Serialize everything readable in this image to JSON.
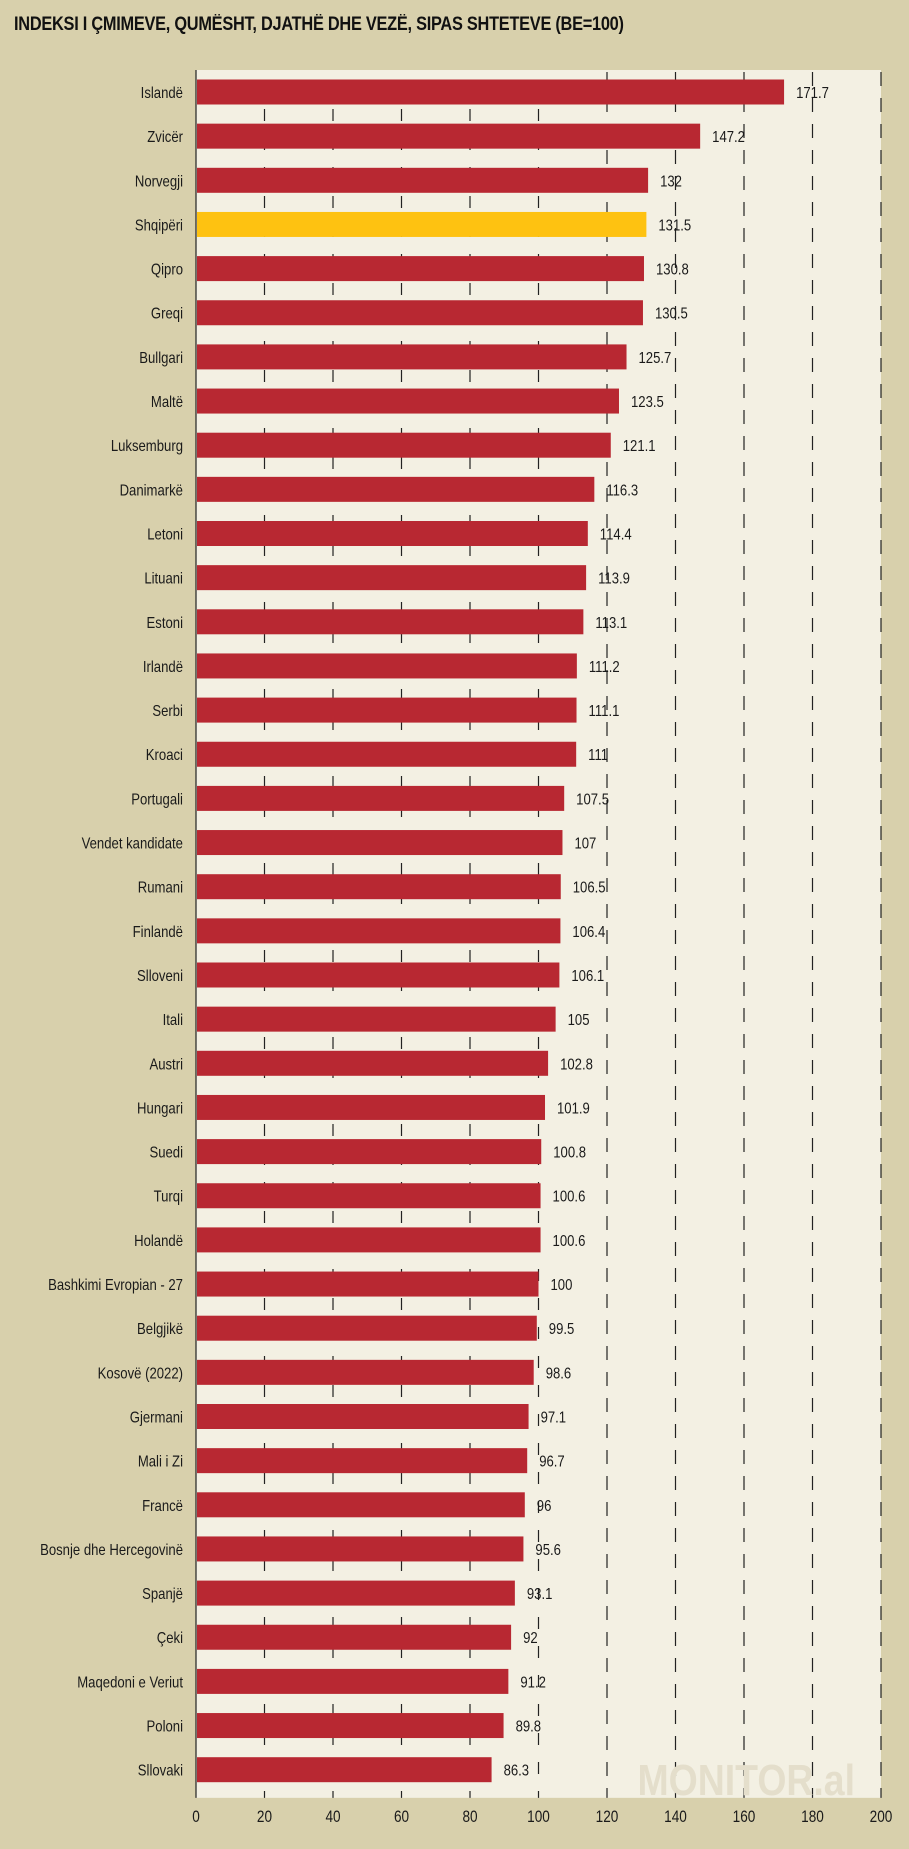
{
  "chart_data": {
    "type": "bar",
    "orientation": "horizontal",
    "title": "INDEKSI I ÇMIMEVE, QUMËSHT, DJATHË DHE VEZË, SIPAS SHTETEVE (BE=100)",
    "xlabel": "",
    "ylabel": "",
    "xlim": [
      0,
      200
    ],
    "xticks": [
      0,
      20,
      40,
      60,
      80,
      100,
      120,
      140,
      160,
      180,
      200
    ],
    "grid": true,
    "watermark": "MONITOR.al",
    "colors": {
      "default": "#B82832",
      "highlight": "#FEC211"
    },
    "highlight": "Shqipëri",
    "categories": [
      "Islandë",
      "Zvicër",
      "Norvegji",
      "Shqipëri",
      "Qipro",
      "Greqi",
      "Bullgari",
      "Maltë",
      "Luksemburg",
      "Danimarkë",
      "Letoni",
      "Lituani",
      "Estoni",
      "Irlandë",
      "Serbi",
      "Kroaci",
      "Portugali",
      "Vendet kandidate",
      "Rumani",
      "Finlandë",
      "Slloveni",
      "Itali",
      "Austri",
      "Hungari",
      "Suedi",
      "Turqi",
      "Holandë",
      "Bashkimi Evropian - 27",
      "Belgjikë",
      "Kosovë (2022)",
      "Gjermani",
      "Mali i Zi",
      "Francë",
      "Bosnje dhe Hercegovinë",
      "Spanjë",
      "Çeki",
      "Maqedoni e Veriut",
      "Poloni",
      "Sllovaki"
    ],
    "values": [
      171.7,
      147.2,
      132,
      131.5,
      130.8,
      130.5,
      125.7,
      123.5,
      121.1,
      116.3,
      114.4,
      113.9,
      113.1,
      111.2,
      111.1,
      111,
      107.5,
      107,
      106.5,
      106.4,
      106.1,
      105,
      102.8,
      101.9,
      100.8,
      100.6,
      100.6,
      100,
      99.5,
      98.6,
      97.1,
      96.7,
      96,
      95.6,
      93.1,
      92,
      91.2,
      89.8,
      86.3
    ],
    "value_labels": [
      "171.7",
      "147.2",
      "132",
      "131.5",
      "130.8",
      "130.5",
      "125.7",
      "123.5",
      "121.1",
      "116.3",
      "114.4",
      "113.9",
      "113.1",
      "111.2",
      "111.1",
      "111",
      "107.5",
      "107",
      "106.5",
      "106.4",
      "106.1",
      "105",
      "102.8",
      "101.9",
      "100.8",
      "100.6",
      "100.6",
      "100",
      "99.5",
      "98.6",
      "97.1",
      "96.7",
      "96",
      "95.6",
      "93.1",
      "92",
      "91.2",
      "89.8",
      "86.3"
    ]
  }
}
